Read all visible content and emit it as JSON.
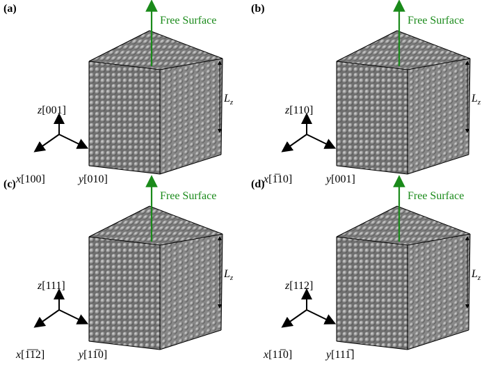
{
  "panels": [
    {
      "label": "(a)",
      "annotation": "Free Surface",
      "length": {
        "symbol": "L",
        "subscript": "z"
      },
      "axes": [
        {
          "var": "z",
          "miller": "[001]"
        },
        {
          "var": "x",
          "miller": "[100]"
        },
        {
          "var": "y",
          "miller": "[010]"
        }
      ]
    },
    {
      "label": "(b)",
      "annotation": "Free Surface",
      "length": {
        "symbol": "L",
        "subscript": "z"
      },
      "axes": [
        {
          "var": "z",
          "miller": "[110]"
        },
        {
          "var": "x",
          "miller": "[1̅10]"
        },
        {
          "var": "y",
          "miller": "[001]"
        }
      ]
    },
    {
      "label": "(c)",
      "annotation": "Free Surface",
      "length": {
        "symbol": "L",
        "subscript": "z"
      },
      "axes": [
        {
          "var": "z",
          "miller": "[111]"
        },
        {
          "var": "x",
          "miller": "[1̅1̅2]"
        },
        {
          "var": "y",
          "miller": "[11̅0]"
        }
      ]
    },
    {
      "label": "(d)",
      "annotation": "Free Surface",
      "length": {
        "symbol": "L",
        "subscript": "z"
      },
      "axes": [
        {
          "var": "z",
          "miller": "[112]"
        },
        {
          "var": "x",
          "miller": "[11̅0]"
        },
        {
          "var": "y",
          "miller": "[111̅]"
        }
      ]
    }
  ]
}
